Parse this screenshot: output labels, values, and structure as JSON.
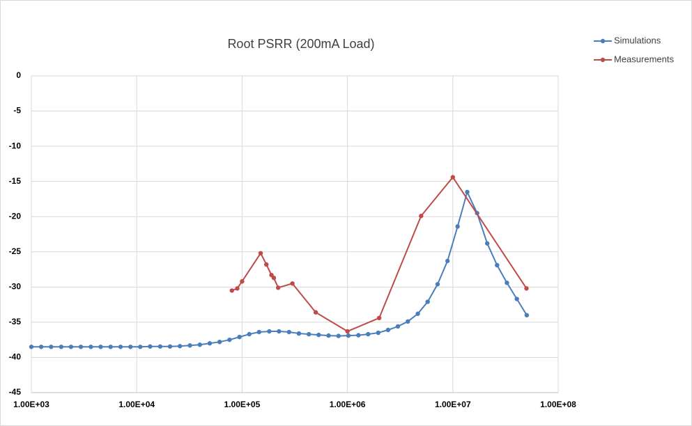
{
  "chart_data": {
    "type": "line",
    "title": "Root  PSRR (200mA Load)",
    "xscale": "log",
    "grid": true,
    "legend": "top-right",
    "xlim": [
      1000,
      100000000
    ],
    "xticks": [
      {
        "value": 1000,
        "label": "1.00E+03"
      },
      {
        "value": 10000,
        "label": "1.00E+04"
      },
      {
        "value": 100000,
        "label": "1.00E+05"
      },
      {
        "value": 1000000,
        "label": "1.00E+06"
      },
      {
        "value": 10000000,
        "label": "1.00E+07"
      },
      {
        "value": 100000000,
        "label": "1.00E+08"
      }
    ],
    "ylim": [
      -45,
      0
    ],
    "yticks": [
      0,
      -5,
      -10,
      -15,
      -20,
      -25,
      -30,
      -35,
      -40,
      -45
    ],
    "series": [
      {
        "name": "Simulations",
        "color": "#4a7ebb",
        "x": [
          1000,
          1240,
          1540,
          1920,
          2380,
          2950,
          3670,
          4550,
          5650,
          7020,
          8720,
          10800,
          13400,
          16700,
          20700,
          25700,
          32000,
          39700,
          49300,
          61200,
          76000,
          94400,
          117000,
          145000,
          181000,
          224000,
          279000,
          346000,
          430000,
          533000,
          662000,
          822000,
          1020000,
          1270000,
          1570000,
          1960000,
          2430000,
          3010000,
          3740000,
          4650000,
          5770000,
          7170000,
          8900000,
          11100000,
          13700000,
          17000000,
          21200000,
          26300000,
          32600000,
          40500000,
          50300000
        ],
        "values": [
          -38.5,
          -38.5,
          -38.5,
          -38.5,
          -38.5,
          -38.5,
          -38.5,
          -38.5,
          -38.5,
          -38.5,
          -38.5,
          -38.5,
          -38.45,
          -38.45,
          -38.45,
          -38.4,
          -38.3,
          -38.2,
          -38.0,
          -37.8,
          -37.5,
          -37.1,
          -36.7,
          -36.4,
          -36.3,
          -36.3,
          -36.4,
          -36.6,
          -36.7,
          -36.8,
          -36.9,
          -36.95,
          -36.9,
          -36.85,
          -36.7,
          -36.5,
          -36.1,
          -35.6,
          -34.9,
          -33.8,
          -32.1,
          -29.6,
          -26.3,
          -21.4,
          -16.5,
          -19.5,
          -23.8,
          -26.9,
          -29.4,
          -31.7,
          -34.0
        ]
      },
      {
        "name": "Measurements",
        "color": "#be4b48",
        "x": [
          80000,
          90000,
          100000,
          150000,
          170000,
          190000,
          200000,
          220000,
          300000,
          500000,
          1000000,
          2000000,
          5000000,
          10000000,
          50000000
        ],
        "values": [
          -30.5,
          -30.2,
          -29.2,
          -25.2,
          -26.8,
          -28.3,
          -28.7,
          -30.1,
          -29.5,
          -33.6,
          -36.3,
          -34.4,
          -19.9,
          -14.4,
          -30.2
        ]
      }
    ]
  }
}
